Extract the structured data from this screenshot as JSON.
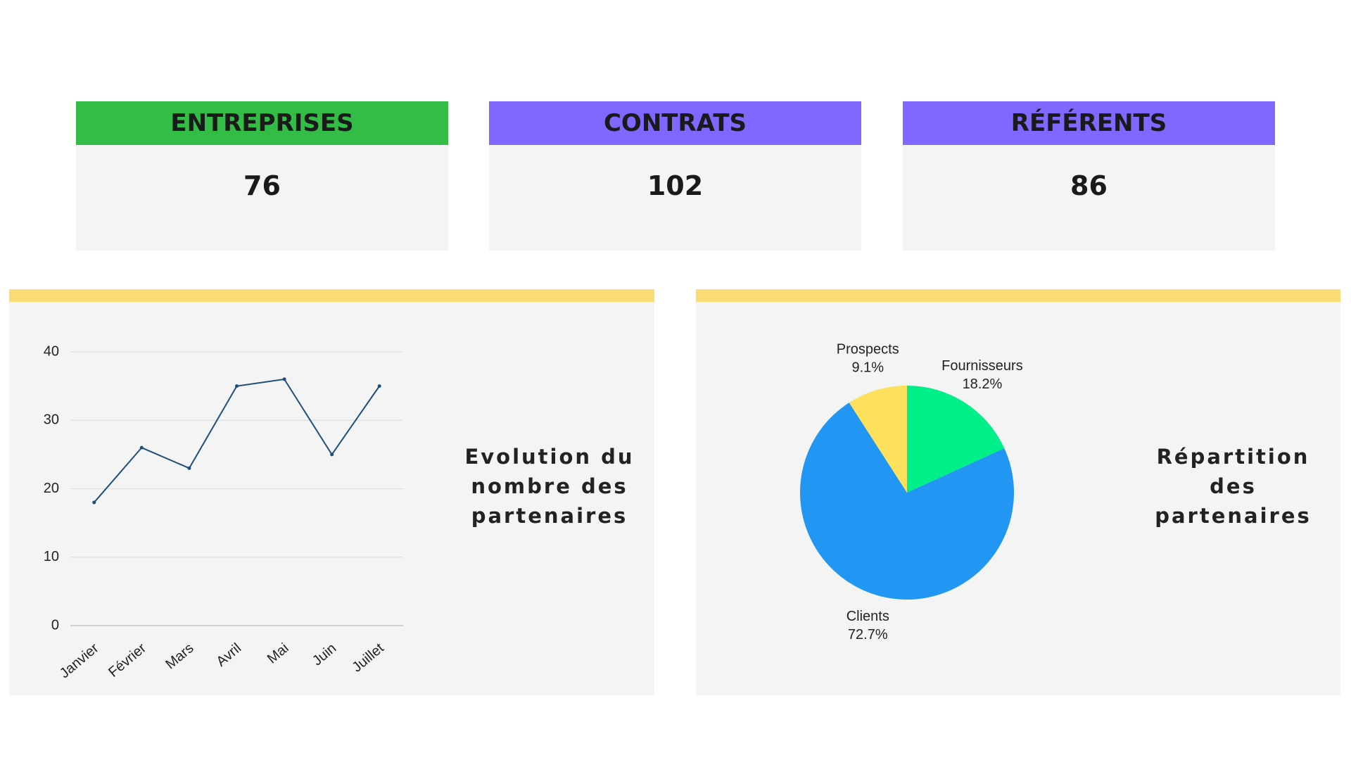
{
  "kpis": [
    {
      "label": "ENTREPRISES",
      "value": "76",
      "color": "#33bd47"
    },
    {
      "label": "CONTRATS",
      "value": "102",
      "color": "#8166ff"
    },
    {
      "label": "RÉFÉRENTS",
      "value": "86",
      "color": "#8166ff"
    }
  ],
  "chart_data": [
    {
      "type": "line",
      "title": "Evolution du nombre des partenaires",
      "categories": [
        "Janvier",
        "Février",
        "Mars",
        "Avril",
        "Mai",
        "Juin",
        "Juillet"
      ],
      "values": [
        18,
        26,
        23,
        35,
        36,
        25,
        35
      ],
      "color": "#1f4e79",
      "ylim": [
        0,
        40
      ],
      "yticks": [
        0,
        10,
        20,
        30,
        40
      ],
      "grid": true
    },
    {
      "type": "pie",
      "title": "Répartition des partenaires",
      "categories": [
        "Fournisseurs",
        "Clients",
        "Prospects"
      ],
      "values": [
        18.2,
        72.7,
        9.1
      ],
      "value_labels": [
        "18.2%",
        "72.7%",
        "9.1%"
      ],
      "colors": [
        "#00ef88",
        "#2196f3",
        "#fde05b"
      ]
    }
  ]
}
